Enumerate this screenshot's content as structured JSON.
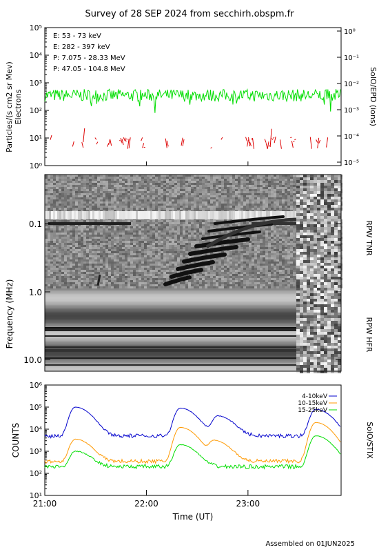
{
  "title": "Survey of 28 SEP 2024 from secchirh.obspm.fr",
  "footer": "Assembled on 01JUN2025",
  "colors": {
    "green": "#00dd00",
    "red": "#dd0000",
    "black": "#000000",
    "blue": "#0000cc",
    "orange": "#ff9900"
  },
  "chart_data": [
    {
      "type": "line",
      "panel": "top",
      "ylabel": "Particles/(s cm2 sr Mev)",
      "ylabel2": "Electrons",
      "right_label": "SolO/EPD (ions)",
      "yscale": "log",
      "ylim": [
        1,
        100000
      ],
      "y_ticks": [
        "10⁰",
        "10¹",
        "10²",
        "10³",
        "10⁴",
        "10⁵"
      ],
      "y2lim": [
        1e-05,
        1
      ],
      "y2_ticks": [
        "10⁻⁵",
        "10⁻⁴",
        "10⁻³",
        "10⁻²",
        "10⁻¹",
        "10⁰"
      ],
      "xlim": [
        "21:00",
        "23:55"
      ],
      "legend": [
        {
          "label": "E: 53 - 73 keV",
          "color": "#00dd00"
        },
        {
          "label": "E: 282 - 397 keV",
          "color": "#dd0000"
        },
        {
          "label": "P: 7.075 - 28.33 MeV",
          "color": "#000000"
        },
        {
          "label": "P: 47.05 - 104.8 MeV",
          "color": "#0000cc"
        }
      ],
      "series": [
        {
          "name": "E: 53 - 73 keV",
          "baseline": 350,
          "min": 80,
          "max": 600
        },
        {
          "name": "E: 282 - 397 keV",
          "baseline": 7,
          "min": 4,
          "max": 25
        }
      ]
    },
    {
      "type": "heatmap",
      "panel": "middle",
      "ylabel": "Frequency (MHz)",
      "yscale": "log",
      "y_ticks": [
        "0.1",
        "1.0",
        "10.0"
      ],
      "right_labels": [
        "RPW TNR",
        "RPW HFR"
      ],
      "features": [
        {
          "kind": "type III radio burst",
          "start": "22:15",
          "end": "22:55",
          "freq_range_mhz": [
            0.07,
            0.8
          ]
        }
      ]
    },
    {
      "type": "line",
      "panel": "bottom",
      "ylabel": "COUNTS",
      "right_label": "SolO/STIX",
      "xlabel": "Time (UT)",
      "yscale": "log",
      "ylim": [
        10,
        1000000
      ],
      "y_ticks": [
        "10¹",
        "10²",
        "10³",
        "10⁴",
        "10⁵",
        "10⁶"
      ],
      "x_ticks": [
        "21:00",
        "22:00",
        "23:00"
      ],
      "series": [
        {
          "name": "4-10keV",
          "color": "#0000cc",
          "baseline": 5000,
          "peaks": [
            {
              "t": "21:18",
              "v": 100000
            },
            {
              "t": "22:20",
              "v": 90000
            },
            {
              "t": "22:42",
              "v": 40000
            },
            {
              "t": "23:40",
              "v": 80000
            }
          ]
        },
        {
          "name": "10-15keV",
          "color": "#ff9900",
          "baseline": 350,
          "peaks": [
            {
              "t": "21:18",
              "v": 3500
            },
            {
              "t": "22:20",
              "v": 12000
            },
            {
              "t": "22:40",
              "v": 3000
            },
            {
              "t": "23:40",
              "v": 20000
            }
          ]
        },
        {
          "name": "15-25keV",
          "color": "#00dd00",
          "baseline": 200,
          "peaks": [
            {
              "t": "21:18",
              "v": 1000
            },
            {
              "t": "22:20",
              "v": 2000
            },
            {
              "t": "23:40",
              "v": 5000
            }
          ]
        }
      ]
    }
  ]
}
